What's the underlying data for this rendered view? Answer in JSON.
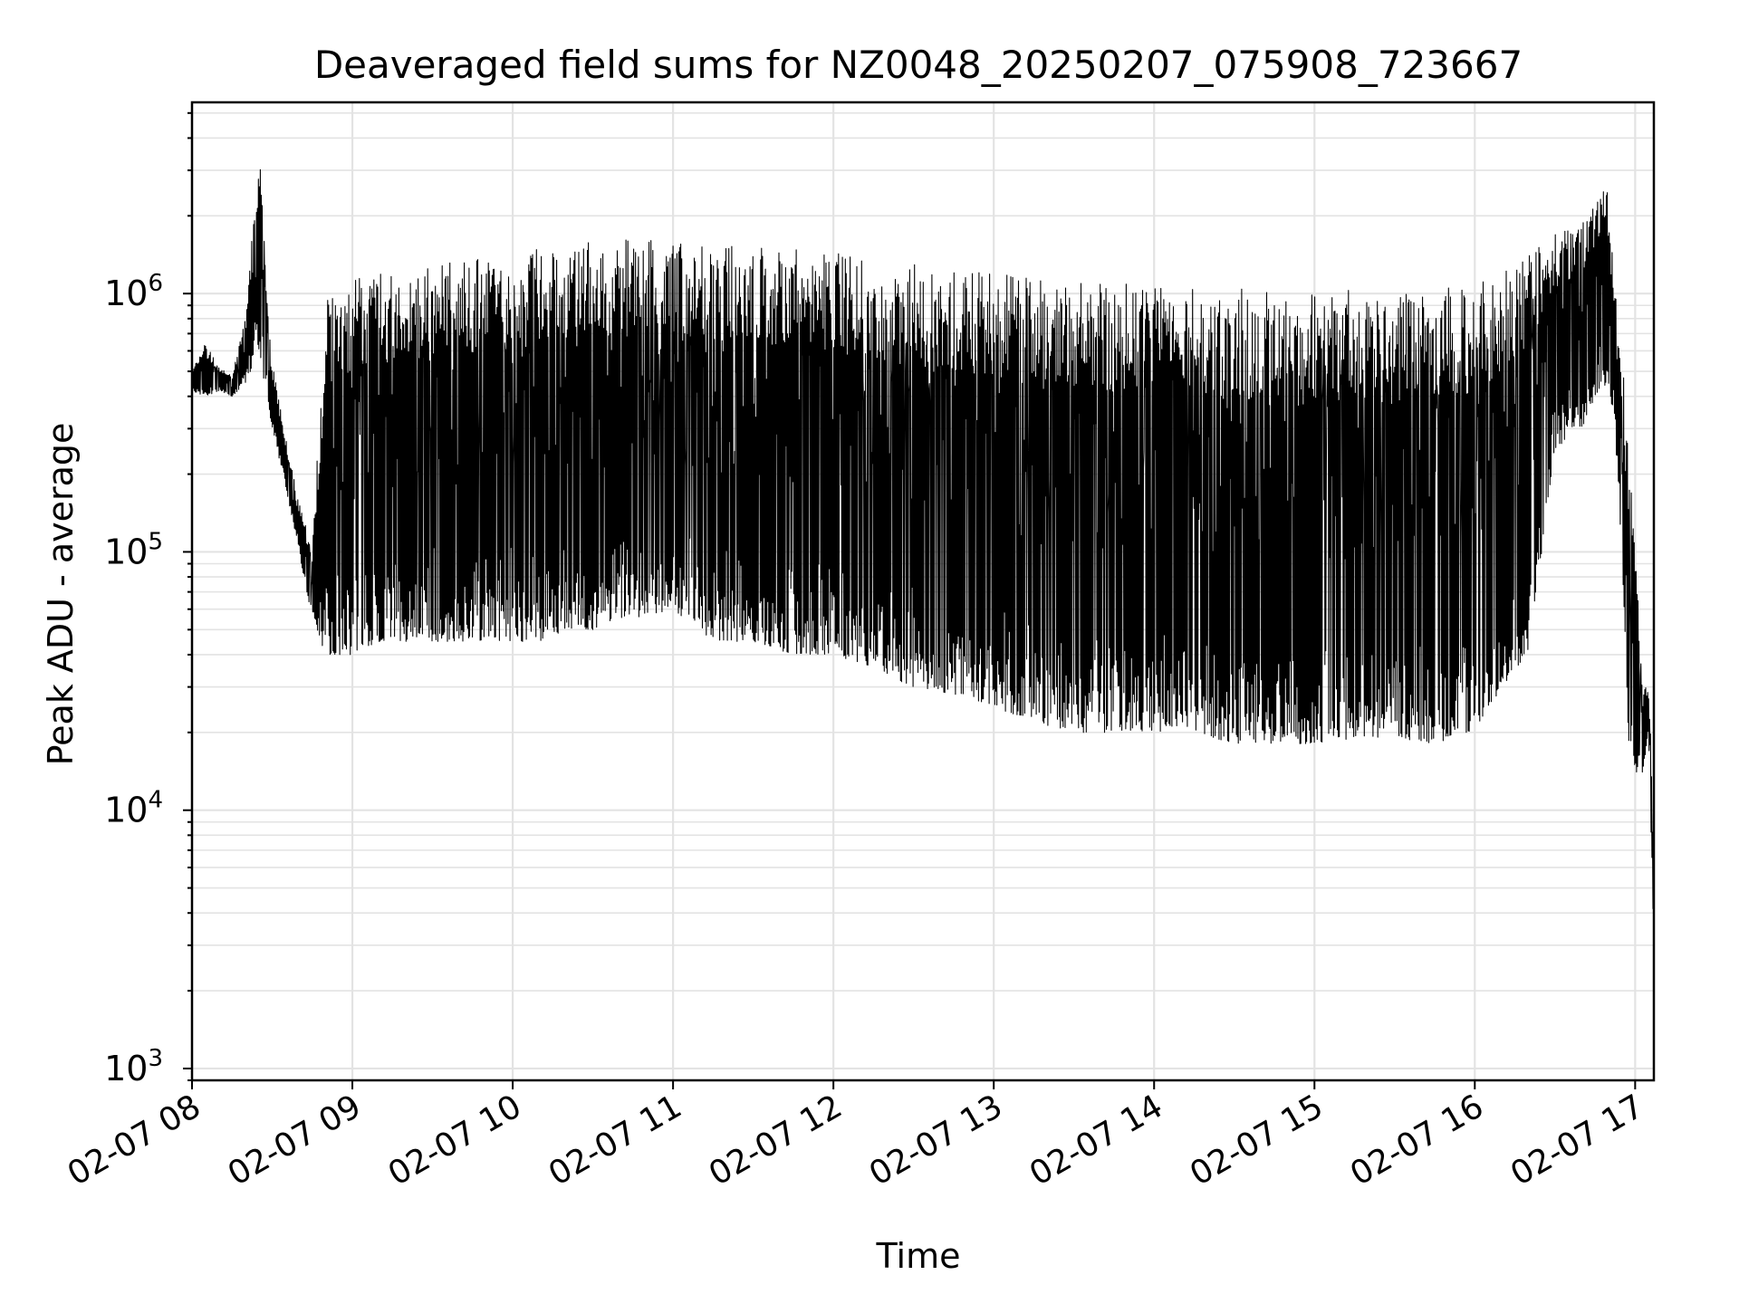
{
  "chart_data": {
    "type": "line",
    "title": "Deaveraged field sums for NZ0048_20250207_075908_723667",
    "xlabel": "Time",
    "ylabel": "Peak ADU - average",
    "yscale": "log",
    "ylim": [
      900,
      5500000
    ],
    "xlim": [
      "02-07 08:00",
      "02-07 17:07"
    ],
    "grid": true,
    "x_ticks": [
      "02-07 08",
      "02-07 09",
      "02-07 10",
      "02-07 11",
      "02-07 12",
      "02-07 13",
      "02-07 14",
      "02-07 15",
      "02-07 16",
      "02-07 17"
    ],
    "y_ticks": [
      {
        "value": 1000,
        "base": "10",
        "exp": "3"
      },
      {
        "value": 10000,
        "base": "10",
        "exp": "4"
      },
      {
        "value": 100000,
        "base": "10",
        "exp": "5"
      },
      {
        "value": 1000000,
        "base": "10",
        "exp": "6"
      }
    ],
    "series": [
      {
        "color": "#000000",
        "x": [
          "02-07 08:00",
          "02-07 08:05",
          "02-07 08:10",
          "02-07 08:15",
          "02-07 08:20",
          "02-07 08:22",
          "02-07 08:24",
          "02-07 08:26",
          "02-07 08:28",
          "02-07 08:30",
          "02-07 08:35",
          "02-07 08:40",
          "02-07 08:45",
          "02-07 08:50",
          "02-07 08:55",
          "02-07 09:00",
          "02-07 09:10",
          "02-07 09:20",
          "02-07 09:30",
          "02-07 09:40",
          "02-07 09:50",
          "02-07 10:00",
          "02-07 10:10",
          "02-07 10:20",
          "02-07 10:30",
          "02-07 10:40",
          "02-07 10:50",
          "02-07 11:00",
          "02-07 11:15",
          "02-07 11:30",
          "02-07 11:45",
          "02-07 12:00",
          "02-07 12:15",
          "02-07 12:30",
          "02-07 12:45",
          "02-07 13:00",
          "02-07 13:15",
          "02-07 13:30",
          "02-07 13:45",
          "02-07 14:00",
          "02-07 14:15",
          "02-07 14:30",
          "02-07 14:45",
          "02-07 15:00",
          "02-07 15:15",
          "02-07 15:30",
          "02-07 15:45",
          "02-07 16:00",
          "02-07 16:10",
          "02-07 16:20",
          "02-07 16:30",
          "02-07 16:40",
          "02-07 16:45",
          "02-07 16:48",
          "02-07 16:50",
          "02-07 16:52",
          "02-07 16:55",
          "02-07 16:57",
          "02-07 17:00",
          "02-07 17:03",
          "02-07 17:05",
          "02-07 17:07"
        ],
        "y_high": [
          500000,
          650000,
          520000,
          480000,
          800000,
          1500000,
          2600000,
          3700000,
          1000000,
          550000,
          280000,
          160000,
          100000,
          950000,
          1100000,
          1150000,
          1200000,
          1250000,
          1300000,
          1350000,
          1400000,
          1450000,
          1500000,
          1550000,
          1600000,
          1650000,
          1700000,
          1600000,
          1550000,
          1550000,
          1500000,
          1450000,
          1400000,
          1300000,
          1250000,
          1200000,
          1150000,
          1100000,
          1100000,
          1100000,
          1050000,
          1050000,
          1000000,
          1000000,
          1050000,
          1000000,
          1050000,
          1100000,
          1200000,
          1400000,
          1700000,
          1900000,
          2200000,
          3200000,
          2300000,
          1200000,
          600000,
          300000,
          100000,
          32000,
          30000,
          10000
        ],
        "y_low": [
          420000,
          400000,
          420000,
          400000,
          450000,
          500000,
          700000,
          500000,
          400000,
          300000,
          180000,
          100000,
          55000,
          40000,
          40000,
          40000,
          45000,
          45000,
          45000,
          45000,
          45000,
          45000,
          45000,
          50000,
          50000,
          55000,
          55000,
          60000,
          45000,
          45000,
          40000,
          40000,
          35000,
          30000,
          28000,
          25000,
          22000,
          20000,
          20000,
          20000,
          20000,
          18000,
          18000,
          18000,
          19000,
          19000,
          18000,
          20000,
          30000,
          40000,
          250000,
          300000,
          400000,
          450000,
          400000,
          350000,
          100000,
          20000,
          14000,
          14000,
          20000,
          3000
        ]
      }
    ]
  }
}
